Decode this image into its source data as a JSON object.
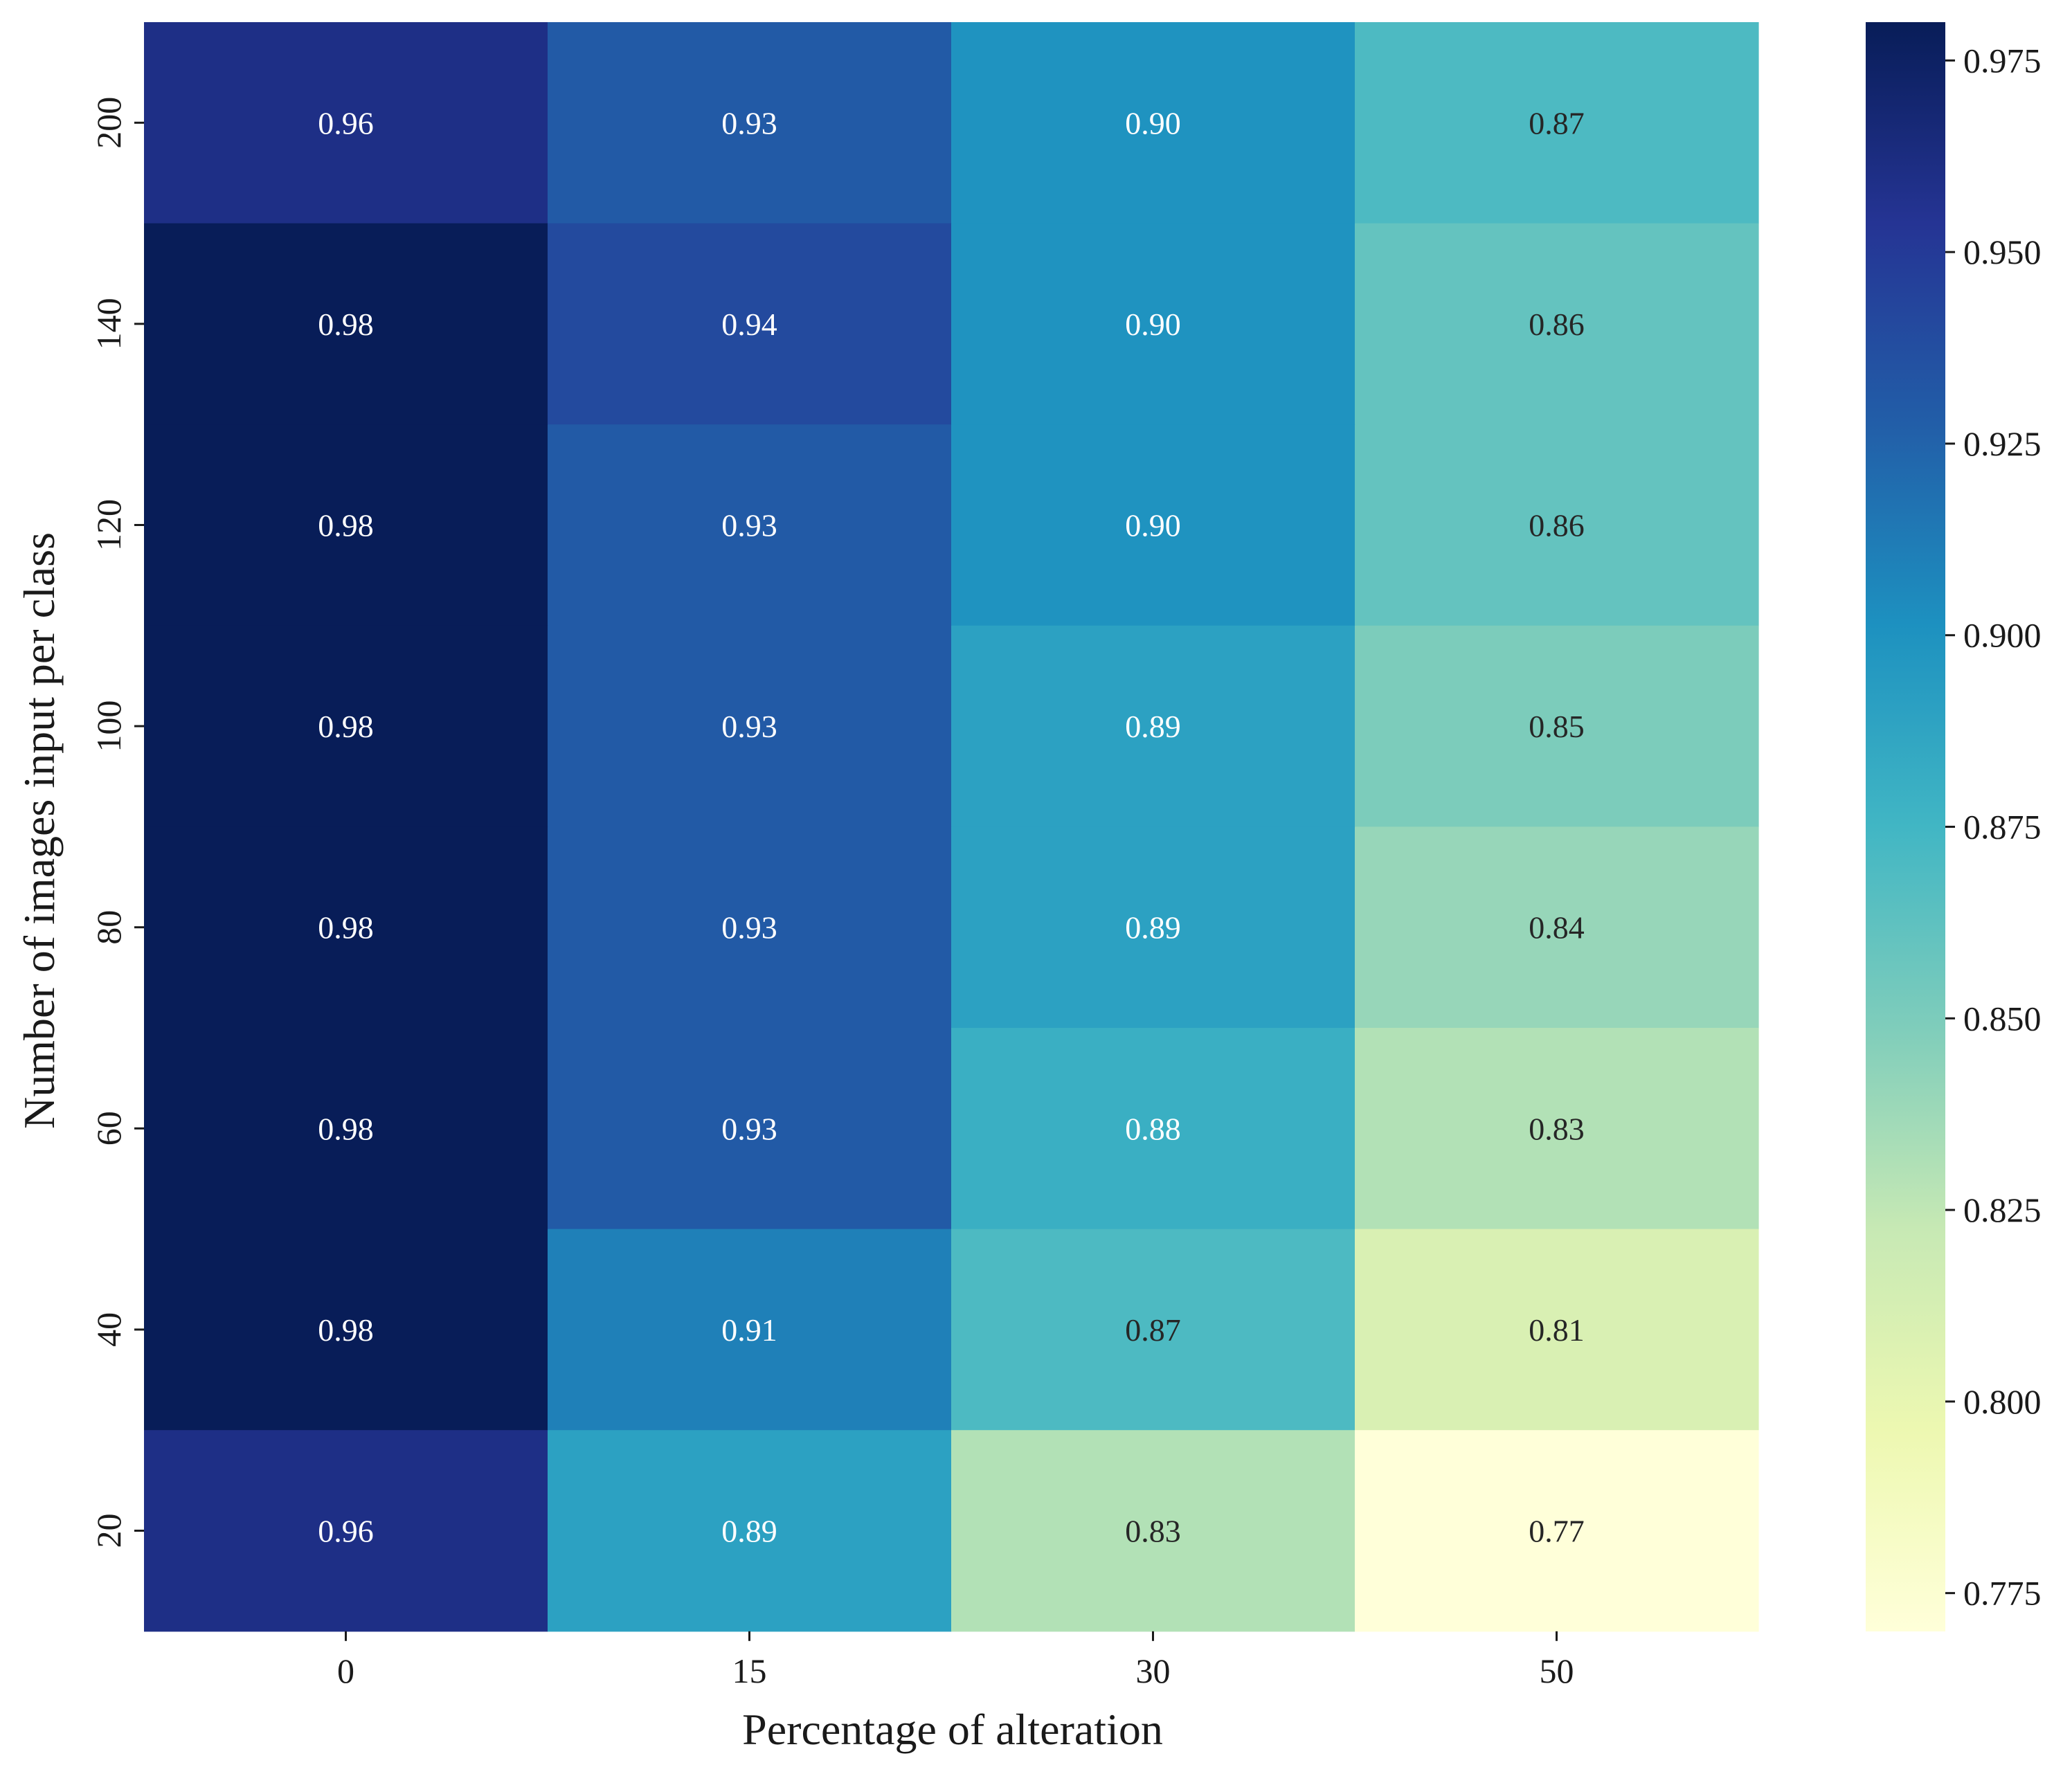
{
  "chart_data": {
    "type": "heatmap",
    "xlabel": "Percentage of alteration",
    "ylabel": "Number of images input per class",
    "x_categories": [
      "0",
      "15",
      "30",
      "50"
    ],
    "y_categories": [
      "200",
      "140",
      "120",
      "100",
      "80",
      "60",
      "40",
      "20"
    ],
    "values": [
      [
        0.96,
        0.93,
        0.9,
        0.87
      ],
      [
        0.98,
        0.94,
        0.9,
        0.86
      ],
      [
        0.98,
        0.93,
        0.9,
        0.86
      ],
      [
        0.98,
        0.93,
        0.89,
        0.85
      ],
      [
        0.98,
        0.93,
        0.89,
        0.84
      ],
      [
        0.98,
        0.93,
        0.88,
        0.83
      ],
      [
        0.98,
        0.91,
        0.87,
        0.81
      ],
      [
        0.96,
        0.89,
        0.83,
        0.77
      ]
    ],
    "value_format_decimals": 2,
    "colorscale": "YlGnBu",
    "color_range": [
      0.77,
      0.98
    ],
    "colorbar": {
      "ticks": [
        0.775,
        0.8,
        0.825,
        0.85,
        0.875,
        0.9,
        0.925,
        0.95,
        0.975
      ],
      "tick_labels": [
        "0.775",
        "0.800",
        "0.825",
        "0.850",
        "0.875",
        "0.900",
        "0.925",
        "0.950",
        "0.975"
      ]
    },
    "colors": {
      "label_light": "#ffffff",
      "label_dark": "#262626",
      "stops": [
        "#ffffd9",
        "#edf8b1",
        "#c7e9b4",
        "#7fcdbb",
        "#41b6c4",
        "#1d91c0",
        "#225ea8",
        "#253494",
        "#081d58"
      ]
    }
  }
}
